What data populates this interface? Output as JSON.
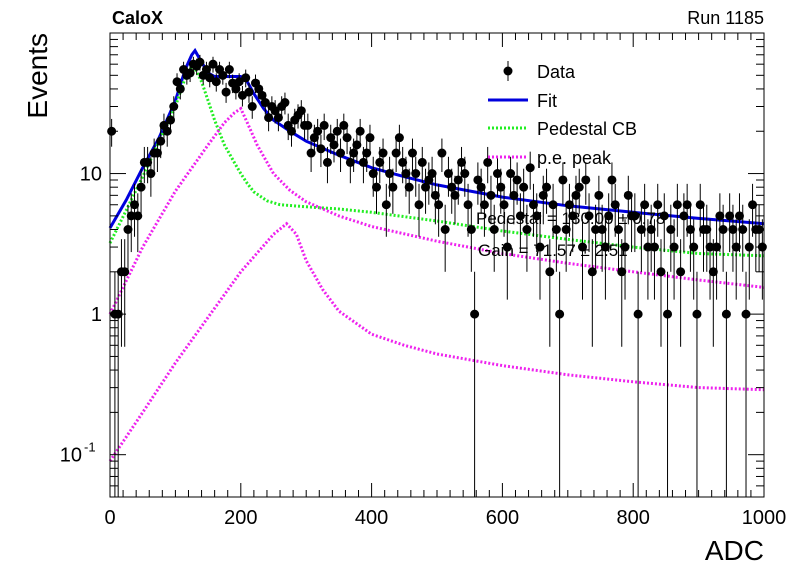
{
  "header": {
    "experiment": "CaloX",
    "run": "Run 1185"
  },
  "fit_text": {
    "pedestal": "Pedestal = 130.00 ± 0.78",
    "gain": "Gain = 71.57 ± 2.51"
  },
  "chart_data": {
    "type": "scatter",
    "xlabel": "ADC",
    "ylabel": "Events",
    "xlim": [
      0,
      1000
    ],
    "ylim": [
      0.05,
      100
    ],
    "yscale": "log",
    "x_ticks": [
      "0",
      "200",
      "400",
      "600",
      "800",
      "1000"
    ],
    "y_ticks": [
      {
        "label": "10",
        "exp": "-1",
        "value": 0.1
      },
      {
        "label": "1",
        "exp": "",
        "value": 1
      },
      {
        "label": "10",
        "exp": "",
        "value": 10
      }
    ],
    "legend": {
      "placement": "top-right",
      "entries": [
        {
          "label": "Data",
          "style": "marker"
        },
        {
          "label": "Fit",
          "style": "line",
          "color": "#0000dd"
        },
        {
          "label": "Pedestal CB",
          "style": "dotted",
          "color": "#22ee22"
        },
        {
          "label": "p.e. peak",
          "style": "dotted",
          "color": "#ee22ee"
        }
      ]
    },
    "series": [
      {
        "name": "Data",
        "style": "markers_with_errors",
        "color": "#000000",
        "x": [
          0,
          5,
          10,
          15,
          20,
          25,
          30,
          35,
          40,
          45,
          50,
          55,
          60,
          65,
          70,
          75,
          80,
          85,
          90,
          95,
          100,
          105,
          110,
          115,
          120,
          125,
          130,
          135,
          140,
          145,
          150,
          155,
          160,
          165,
          170,
          175,
          180,
          185,
          190,
          195,
          200,
          205,
          210,
          215,
          220,
          225,
          230,
          235,
          240,
          245,
          250,
          255,
          260,
          265,
          270,
          275,
          280,
          285,
          290,
          295,
          300,
          305,
          310,
          315,
          320,
          325,
          330,
          335,
          340,
          345,
          350,
          355,
          360,
          365,
          370,
          375,
          380,
          385,
          390,
          395,
          400,
          405,
          410,
          415,
          420,
          425,
          430,
          435,
          440,
          445,
          450,
          455,
          460,
          465,
          470,
          475,
          480,
          485,
          490,
          495,
          500,
          505,
          510,
          515,
          520,
          525,
          530,
          535,
          540,
          545,
          550,
          555,
          560,
          565,
          570,
          575,
          580,
          585,
          590,
          595,
          600,
          605,
          610,
          615,
          620,
          625,
          630,
          635,
          640,
          645,
          650,
          655,
          660,
          665,
          670,
          675,
          680,
          685,
          690,
          695,
          700,
          705,
          710,
          715,
          720,
          725,
          730,
          735,
          740,
          745,
          750,
          755,
          760,
          765,
          770,
          775,
          780,
          785,
          790,
          795,
          800,
          805,
          810,
          815,
          820,
          825,
          830,
          835,
          840,
          845,
          850,
          855,
          860,
          865,
          870,
          875,
          880,
          885,
          890,
          895,
          900,
          905,
          910,
          915,
          920,
          925,
          930,
          935,
          940,
          945,
          950,
          955,
          960,
          965,
          970,
          975,
          980,
          985,
          990,
          995
        ],
        "y": [
          20,
          1,
          1,
          2,
          2,
          4,
          5,
          6,
          5,
          8,
          12,
          12,
          10,
          14,
          14,
          17,
          22,
          20,
          24,
          30,
          45,
          40,
          55,
          50,
          52,
          60,
          58,
          62,
          50,
          55,
          48,
          60,
          45,
          55,
          50,
          38,
          55,
          44,
          40,
          45,
          36,
          48,
          38,
          30,
          44,
          40,
          36,
          32,
          25,
          30,
          28,
          25,
          30,
          32,
          22,
          20,
          24,
          26,
          28,
          22,
          22,
          14,
          18,
          20,
          15,
          22,
          12,
          18,
          16,
          20,
          14,
          22,
          18,
          12,
          14,
          16,
          20,
          12,
          14,
          18,
          10,
          8,
          12,
          14,
          6,
          10,
          8,
          14,
          18,
          12,
          10,
          8,
          14,
          10,
          6,
          12,
          8,
          9,
          10,
          7,
          6,
          14,
          4,
          10,
          8,
          7,
          9,
          12,
          10,
          6,
          4,
          1,
          9,
          8,
          6,
          12,
          7,
          4,
          10,
          8,
          6,
          3,
          10,
          7,
          9,
          5,
          8,
          4,
          11,
          6,
          5,
          3,
          7,
          8,
          2,
          6,
          4,
          1,
          9,
          4,
          6,
          5,
          7,
          8,
          3,
          9,
          5,
          2,
          4,
          7,
          4,
          3,
          5,
          9,
          6,
          4,
          2,
          3,
          7,
          5,
          5,
          1,
          4,
          6,
          3,
          4,
          3,
          6,
          2,
          5,
          1,
          4,
          3,
          6,
          2,
          5,
          6,
          4,
          3,
          1,
          6,
          4,
          4,
          3,
          2,
          3,
          5,
          4,
          1,
          5,
          4,
          3,
          5,
          4,
          1,
          3,
          6,
          4,
          4,
          3
        ]
      },
      {
        "name": "Fit",
        "style": "line",
        "color": "#0000dd",
        "x": [
          0,
          25,
          50,
          75,
          100,
          115,
          125,
          130,
          140,
          150,
          160,
          175,
          190,
          200,
          210,
          220,
          235,
          250,
          275,
          300,
          350,
          400,
          450,
          500,
          600,
          700,
          800,
          900,
          1000
        ],
        "y": [
          4.1,
          6.5,
          11,
          18,
          33,
          55,
          70,
          75,
          62,
          52,
          49,
          49,
          49,
          49,
          45,
          37,
          29,
          24,
          20,
          17,
          13.5,
          11,
          9.5,
          8.3,
          6.8,
          5.9,
          5.3,
          4.8,
          4.4
        ]
      },
      {
        "name": "Pedestal CB",
        "style": "dotted",
        "color": "#22ee22",
        "x": [
          0,
          25,
          50,
          75,
          100,
          115,
          125,
          130,
          140,
          150,
          160,
          175,
          190,
          200,
          210,
          220,
          240,
          260,
          300,
          350,
          400,
          500,
          600,
          700,
          800,
          900,
          1000
        ],
        "y": [
          3.2,
          5.5,
          9.5,
          17,
          30,
          48,
          58,
          56,
          45,
          33,
          24,
          16,
          12,
          10,
          8.5,
          7.4,
          6.4,
          6.0,
          5.8,
          5.6,
          5.3,
          4.6,
          3.9,
          3.4,
          3.0,
          2.7,
          2.6
        ]
      },
      {
        "name": "p.e. peak",
        "style": "dotted",
        "color": "#ee22ee",
        "x": [
          0,
          50,
          100,
          150,
          175,
          190,
          200,
          210,
          225,
          250,
          275,
          300,
          350,
          400,
          500,
          600,
          700,
          800,
          900,
          1000
        ],
        "y": [
          1.0,
          3.0,
          7.5,
          16,
          23,
          27,
          29,
          23,
          16,
          10,
          7.6,
          6.3,
          5.0,
          4.2,
          3.3,
          2.7,
          2.3,
          2.0,
          1.75,
          1.55
        ]
      },
      {
        "name": "",
        "style": "dotted",
        "color": "#ee22ee",
        "x": [
          0,
          50,
          100,
          150,
          200,
          250,
          270,
          285,
          300,
          325,
          350,
          400,
          450,
          500,
          600,
          700,
          800,
          900,
          1000
        ],
        "y": [
          0.09,
          0.2,
          0.45,
          0.95,
          2.0,
          3.7,
          4.4,
          3.7,
          2.4,
          1.5,
          1.05,
          0.72,
          0.6,
          0.52,
          0.43,
          0.37,
          0.33,
          0.3,
          0.29
        ]
      }
    ]
  }
}
